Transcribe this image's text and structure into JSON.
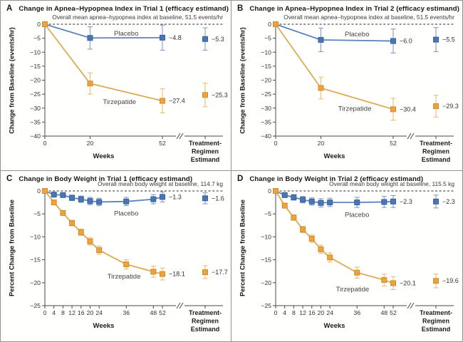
{
  "colors": {
    "placebo": {
      "fill": "#4a76b4",
      "stroke": "#38609a",
      "line": "#5b84bc",
      "error": "#7e9ec9"
    },
    "tirzepatide": {
      "fill": "#eca33c",
      "stroke": "#cf8e2b",
      "line": "#ddaa53",
      "error": "#f0bd6e"
    },
    "axis": "#4a4a4a",
    "zero_line": "#2a2a2a",
    "text": "#333333",
    "border": "#96948f"
  },
  "chart_data": [
    {
      "panel_letter": "A",
      "title": "Change in Apnea–Hypopnea Index in Trial 1 (efficacy estimand)",
      "baseline_note": "Overall mean apnea–hypopnea index at baseline, 51.5 events/hr",
      "type": "line",
      "xlabel": "Weeks",
      "ylabel": "Change from Baseline (events/hr)",
      "ylim": [
        -40,
        0
      ],
      "yticks": [
        0,
        -5,
        -10,
        -15,
        -20,
        -25,
        -30,
        -35,
        -40
      ],
      "xticks": [
        0,
        20,
        52
      ],
      "xmax": 52,
      "axis_break": true,
      "estimand_axis_label": [
        "Treatment-",
        "Regimen",
        "Estimand"
      ],
      "series": [
        {
          "name": "Placebo",
          "color_key": "placebo",
          "x": [
            0,
            20,
            52
          ],
          "y": [
            0,
            -4.9,
            -4.8
          ],
          "err": [
            0,
            4.0,
            4.5
          ],
          "end_label": "−4.8",
          "estimand": {
            "y": -5.3,
            "err": 4.0,
            "label": "−5.3"
          },
          "name_annotation": {
            "x": 36,
            "y": -3.3
          }
        },
        {
          "name": "Tirzepatide",
          "color_key": "tirzepatide",
          "x": [
            0,
            20,
            52
          ],
          "y": [
            0,
            -21.2,
            -27.4
          ],
          "err": [
            0,
            3.8,
            4.3
          ],
          "end_label": "−27.4",
          "estimand": {
            "y": -25.3,
            "err": 4.2,
            "label": "−25.3"
          },
          "name_annotation": {
            "x": 33,
            "y": -27.8
          }
        }
      ]
    },
    {
      "panel_letter": "B",
      "title": "Change in Apnea–Hypopnea Index in Trial 2 (efficacy estimand)",
      "baseline_note": "Overall mean apnea–hypopnea index at baseline, 51.5 events/hr",
      "type": "line",
      "xlabel": "Weeks",
      "ylabel": "Change from Baseline (events/hr)",
      "ylim": [
        -40,
        0
      ],
      "yticks": [
        0,
        -5,
        -10,
        -15,
        -20,
        -25,
        -30,
        -35,
        -40
      ],
      "xticks": [
        0,
        20,
        52
      ],
      "xmax": 52,
      "axis_break": true,
      "estimand_axis_label": [
        "Treatment-",
        "Regimen",
        "Estimand"
      ],
      "series": [
        {
          "name": "Placebo",
          "color_key": "placebo",
          "x": [
            0,
            20,
            52
          ],
          "y": [
            0,
            -5.6,
            -6.0
          ],
          "err": [
            0,
            4.2,
            4.3
          ],
          "end_label": "−6.0",
          "estimand": {
            "y": -5.5,
            "err": 4.3,
            "label": "−5.5"
          },
          "name_annotation": {
            "x": 36,
            "y": -3.6
          }
        },
        {
          "name": "Tirzepatide",
          "color_key": "tirzepatide",
          "x": [
            0,
            20,
            52
          ],
          "y": [
            0,
            -22.8,
            -30.4
          ],
          "err": [
            0,
            3.9,
            3.9
          ],
          "end_label": "−30.4",
          "estimand": {
            "y": -29.3,
            "err": 3.9,
            "label": "−29.3"
          },
          "name_annotation": {
            "x": 35,
            "y": -30.2
          }
        }
      ]
    },
    {
      "panel_letter": "C",
      "title": "Change in Body Weight in Trial 1 (efficacy estimand)",
      "baseline_note": "Overall mean body weight at baseline, 114.7 kg",
      "type": "line",
      "xlabel": "Weeks",
      "ylabel": "Percent Change from Baseline",
      "ylim": [
        -25,
        0
      ],
      "yticks": [
        0,
        -5,
        -10,
        -15,
        -20,
        -25
      ],
      "xticks": [
        0,
        4,
        8,
        12,
        16,
        20,
        24,
        36,
        48,
        52
      ],
      "xmax": 52,
      "axis_break": true,
      "estimand_axis_label": [
        "Treatment-",
        "Regimen",
        "Estimand"
      ],
      "series": [
        {
          "name": "Placebo",
          "color_key": "placebo",
          "x": [
            0,
            4,
            8,
            12,
            16,
            20,
            24,
            36,
            48,
            52
          ],
          "y": [
            0,
            -0.8,
            -0.9,
            -1.5,
            -1.8,
            -2.2,
            -2.4,
            -2.3,
            -1.8,
            -1.3
          ],
          "err": [
            0,
            0.5,
            0.5,
            0.6,
            0.7,
            0.8,
            0.8,
            0.9,
            1.0,
            1.1
          ],
          "end_label": "−1.3",
          "estimand": {
            "y": -1.6,
            "err": 1.2,
            "label": "−1.6"
          },
          "name_annotation": {
            "x": 36,
            "y": -4.9
          }
        },
        {
          "name": "Tirzepatide",
          "color_key": "tirzepatide",
          "x": [
            0,
            4,
            8,
            12,
            16,
            20,
            24,
            36,
            48,
            52
          ],
          "y": [
            0,
            -2.5,
            -4.8,
            -7.0,
            -9.0,
            -11.0,
            -12.9,
            -16.0,
            -17.6,
            -18.1
          ],
          "err": [
            0,
            0.4,
            0.5,
            0.6,
            0.7,
            0.8,
            0.9,
            1.0,
            1.2,
            1.3
          ],
          "end_label": "−18.1",
          "estimand": {
            "y": -17.7,
            "err": 1.4,
            "label": "−17.7"
          },
          "name_annotation": {
            "x": 35,
            "y": -18.6
          }
        }
      ]
    },
    {
      "panel_letter": "D",
      "title": "Change in Body Weight in Trial 2 (efficacy estimand)",
      "baseline_note": "Overall mean body weight at baseline, 115.5 kg",
      "type": "line",
      "xlabel": "Weeks",
      "ylabel": "Percent Change from Baseline",
      "ylim": [
        -25,
        0
      ],
      "yticks": [
        0,
        -5,
        -10,
        -15,
        -20,
        -25
      ],
      "xticks": [
        0,
        4,
        8,
        12,
        16,
        20,
        24,
        36,
        48,
        52
      ],
      "xmax": 52,
      "axis_break": true,
      "estimand_axis_label": [
        "Treatment-",
        "Regimen",
        "Estimand"
      ],
      "series": [
        {
          "name": "Placebo",
          "color_key": "placebo",
          "x": [
            0,
            4,
            8,
            12,
            16,
            20,
            24,
            36,
            48,
            52
          ],
          "y": [
            0,
            -0.9,
            -1.4,
            -1.9,
            -2.3,
            -2.6,
            -2.5,
            -2.5,
            -2.4,
            -2.3
          ],
          "err": [
            0,
            0.5,
            0.6,
            0.7,
            0.8,
            0.9,
            0.9,
            1.1,
            1.2,
            1.3
          ],
          "end_label": "−2.3",
          "estimand": {
            "y": -2.3,
            "err": 1.4,
            "label": "−2.3"
          },
          "name_annotation": {
            "x": 36,
            "y": -5.2
          }
        },
        {
          "name": "Tirzepatide",
          "color_key": "tirzepatide",
          "x": [
            0,
            4,
            8,
            12,
            16,
            20,
            24,
            36,
            48,
            52
          ],
          "y": [
            0,
            -3.2,
            -5.8,
            -8.4,
            -10.4,
            -12.7,
            -14.5,
            -17.8,
            -19.4,
            -20.1
          ],
          "err": [
            0,
            0.5,
            0.6,
            0.7,
            0.8,
            0.9,
            1.0,
            1.2,
            1.3,
            1.4
          ],
          "end_label": "−20.1",
          "estimand": {
            "y": -19.6,
            "err": 1.5,
            "label": "−19.6"
          },
          "name_annotation": {
            "x": 34,
            "y": -21.4
          }
        }
      ]
    }
  ]
}
